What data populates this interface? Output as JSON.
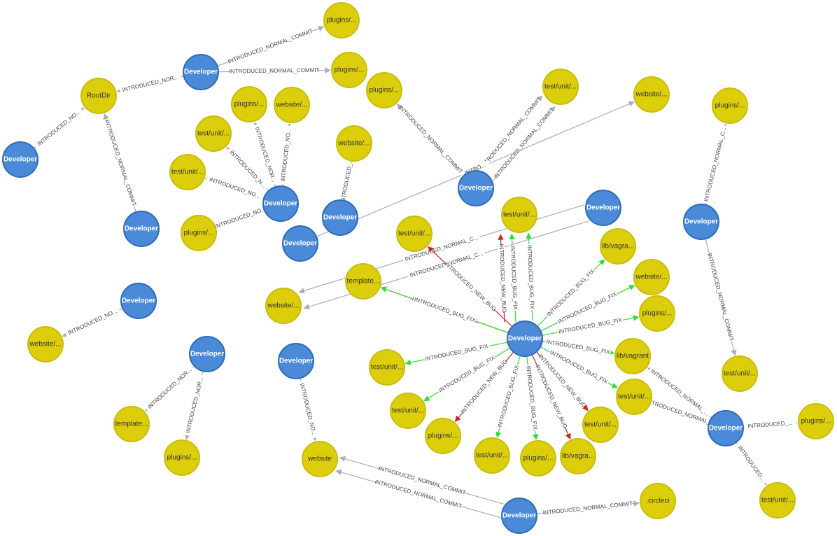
{
  "colors": {
    "developer_fill": "#4a8ad9",
    "developer_stroke": "#2f6cb8",
    "file_fill": "#dcce0a",
    "file_stroke": "#c9bd0b",
    "edge_normal": "#a8adb8",
    "edge_bug_fix": "#33dd33",
    "edge_new_bug": "#cc2222"
  },
  "nodes": [
    {
      "id": "d1",
      "kind": "developer",
      "label": "Developer"
    },
    {
      "id": "f_plugins_top",
      "kind": "file",
      "label": "plugins/..."
    },
    {
      "id": "f_plugins_2",
      "kind": "file",
      "label": "plugins/..."
    },
    {
      "id": "f_rootdir",
      "kind": "file",
      "label": "RootDir"
    },
    {
      "id": "d2",
      "kind": "developer",
      "label": "Developer"
    },
    {
      "id": "d3",
      "kind": "developer",
      "label": "Developer"
    },
    {
      "id": "f_plugins_3",
      "kind": "file",
      "label": "plugins/..."
    },
    {
      "id": "f_testunit_1",
      "kind": "file",
      "label": "test/unit/..."
    },
    {
      "id": "d4",
      "kind": "developer",
      "label": "Developer"
    },
    {
      "id": "f_plugins_4",
      "kind": "file",
      "label": "plugins/..."
    },
    {
      "id": "f_website_1",
      "kind": "file",
      "label": "website/..."
    },
    {
      "id": "f_testunit_2",
      "kind": "file",
      "label": "test/unit/..."
    },
    {
      "id": "f_testunit_3",
      "kind": "file",
      "label": "test/unit/..."
    },
    {
      "id": "f_plugins_5",
      "kind": "file",
      "label": "plugins/..."
    },
    {
      "id": "d5",
      "kind": "developer",
      "label": "Developer"
    },
    {
      "id": "f_website_2",
      "kind": "file",
      "label": "website/..."
    },
    {
      "id": "d6",
      "kind": "developer",
      "label": "Developer"
    },
    {
      "id": "f_website_3",
      "kind": "file",
      "label": "website/..."
    },
    {
      "id": "d7",
      "kind": "developer",
      "label": "Developer"
    },
    {
      "id": "d8",
      "kind": "developer",
      "label": "Developer"
    },
    {
      "id": "f_website_4",
      "kind": "file",
      "label": "website/..."
    },
    {
      "id": "d9",
      "kind": "developer",
      "label": "Developer"
    },
    {
      "id": "f_plugins_6",
      "kind": "file",
      "label": "plugins/..."
    },
    {
      "id": "f_testunit_4",
      "kind": "file",
      "label": "test/unit/..."
    },
    {
      "id": "d10",
      "kind": "developer",
      "label": "Developer"
    },
    {
      "id": "f_website_5",
      "kind": "file",
      "label": "website/..."
    },
    {
      "id": "d11",
      "kind": "developer",
      "label": "Developer"
    },
    {
      "id": "f_template_1",
      "kind": "file",
      "label": "template..."
    },
    {
      "id": "f_plugins_7",
      "kind": "file",
      "label": "plugins/..."
    },
    {
      "id": "d12",
      "kind": "developer",
      "label": "Developer"
    },
    {
      "id": "f_website_6",
      "kind": "file",
      "label": "website"
    },
    {
      "id": "d13",
      "kind": "developer",
      "label": "Developer"
    },
    {
      "id": "f_circleci",
      "kind": "file",
      "label": ".circleci"
    },
    {
      "id": "dC",
      "kind": "developer",
      "label": "Developer"
    },
    {
      "id": "c_testunit_top",
      "kind": "file",
      "label": "test/unit/..."
    },
    {
      "id": "c_testunit_a",
      "kind": "file",
      "label": "test/unit/..."
    },
    {
      "id": "c_template",
      "kind": "file",
      "label": "template..."
    },
    {
      "id": "c_libvagra_1",
      "kind": "file",
      "label": "lib/vagra..."
    },
    {
      "id": "c_website",
      "kind": "file",
      "label": "website/..."
    },
    {
      "id": "c_plugins_r",
      "kind": "file",
      "label": "plugins/..."
    },
    {
      "id": "c_libvagrant",
      "kind": "file",
      "label": "lib/vagrant"
    },
    {
      "id": "c_testunit_r",
      "kind": "file",
      "label": "test/unit/..."
    },
    {
      "id": "c_testunit_br",
      "kind": "file",
      "label": "test/unit/..."
    },
    {
      "id": "c_libvagra_2",
      "kind": "file",
      "label": "lib/vagra..."
    },
    {
      "id": "c_plugins_b",
      "kind": "file",
      "label": "plugins/..."
    },
    {
      "id": "c_testunit_b",
      "kind": "file",
      "label": "test/unit/..."
    },
    {
      "id": "c_plugins_bl",
      "kind": "file",
      "label": "plugins/..."
    },
    {
      "id": "c_testunit_l",
      "kind": "file",
      "label": "test/unit/..."
    },
    {
      "id": "c_testunit_ll",
      "kind": "file",
      "label": "test/unit/..."
    },
    {
      "id": "d14",
      "kind": "developer",
      "label": "Developer"
    },
    {
      "id": "f_plugins_8",
      "kind": "file",
      "label": "plugins/..."
    },
    {
      "id": "f_testunit_5",
      "kind": "file",
      "label": "test/unit/..."
    }
  ],
  "edges": [
    {
      "id": "e1",
      "from": "d1",
      "to": "f_plugins_top",
      "type": "normal",
      "label": "INTRODUCED_NORMAL_COMMIT"
    },
    {
      "id": "e2",
      "from": "d1",
      "to": "f_plugins_2",
      "type": "normal",
      "label": "INTRODUCED_NORMAL_COMMIT"
    },
    {
      "id": "e3",
      "from": "d1",
      "to": "f_rootdir",
      "type": "normal",
      "label": "INTRODUCED_NOR..."
    },
    {
      "id": "e4",
      "from": "d2",
      "to": "f_rootdir",
      "type": "normal",
      "label": "INTRODUCED_NO..."
    },
    {
      "id": "e5",
      "from": "d3",
      "to": "f_rootdir",
      "type": "normal",
      "label": "INTRODUCED_NORMAL_COMMIT"
    },
    {
      "id": "e6",
      "from": "d4",
      "to": "f_plugins_3",
      "type": "normal",
      "label": "INTRODUCED_NORMAL_COMMIT"
    },
    {
      "id": "e7",
      "from": "d4",
      "to": "f_testunit_1",
      "type": "normal",
      "label": "INTRODUCED_NORMAL_COMMIT"
    },
    {
      "id": "e8",
      "from": "d4",
      "to": "f_testunit_1",
      "type": "normal",
      "label": "INTRODUCED_NORMAL_COMMIT"
    },
    {
      "id": "e9",
      "from": "d5",
      "to": "f_plugins_4",
      "type": "normal",
      "label": "INTRODUCED_NOR..."
    },
    {
      "id": "e10",
      "from": "d5",
      "to": "f_website_1",
      "type": "normal",
      "label": "INTRODUCED_NO..."
    },
    {
      "id": "e11",
      "from": "d5",
      "to": "f_testunit_2",
      "type": "normal",
      "label": "INTRODUCED_N..."
    },
    {
      "id": "e12",
      "from": "d5",
      "to": "f_testunit_3",
      "type": "normal",
      "label": "INTRODUCED_NO..."
    },
    {
      "id": "e13",
      "from": "d5",
      "to": "f_plugins_5",
      "type": "normal",
      "label": "INTRODUCED_NO..."
    },
    {
      "id": "e14",
      "from": "d6",
      "to": "f_website_2",
      "type": "normal",
      "label": "INTRODUCED_..."
    },
    {
      "id": "e15",
      "from": "d7",
      "to": "f_website_3",
      "type": "normal",
      "label": "INTRO..."
    },
    {
      "id": "e16",
      "from": "d8",
      "to": "f_website_4",
      "type": "normal",
      "label": "INTRODUCED_NORMAL_C..."
    },
    {
      "id": "e17",
      "from": "d8",
      "to": "f_website_4",
      "type": "normal",
      "label": "INTRODUCED_NORMAL_C..."
    },
    {
      "id": "e18",
      "from": "d9",
      "to": "f_plugins_6",
      "type": "normal",
      "label": "INTRODUCED_NORMAL_C..."
    },
    {
      "id": "e19",
      "from": "d9",
      "to": "f_testunit_4",
      "type": "normal",
      "label": "INTRODUCED_NORMAL_COMMIT"
    },
    {
      "id": "e20",
      "from": "d10",
      "to": "f_website_5",
      "type": "normal",
      "label": "INTRODUCED_NO..."
    },
    {
      "id": "e21",
      "from": "d11",
      "to": "f_template_1",
      "type": "normal",
      "label": "INTRODUCED_NOR..."
    },
    {
      "id": "e22",
      "from": "d11",
      "to": "f_plugins_7",
      "type": "normal",
      "label": "INTRODUCED_NOR..."
    },
    {
      "id": "e23",
      "from": "d12",
      "to": "f_website_6",
      "type": "normal",
      "label": "INTRODUCED_NO..."
    },
    {
      "id": "e24",
      "from": "d13",
      "to": "f_website_6",
      "type": "normal",
      "label": "INTRODUCED_NORMAL_COMMIT"
    },
    {
      "id": "e25",
      "from": "d13",
      "to": "f_website_6",
      "type": "normal",
      "label": "INTRODUCED_NORMAL_COMMIT"
    },
    {
      "id": "e26",
      "from": "d13",
      "to": "f_circleci",
      "type": "normal",
      "label": "INTRODUCED_NORMAL_COMMIT"
    },
    {
      "id": "e27",
      "from": "dC",
      "to": "c_testunit_top",
      "type": "new_bug",
      "label": "INTRODUCED_NEW_BUG"
    },
    {
      "id": "e28",
      "from": "dC",
      "to": "c_testunit_top",
      "type": "bug_fix",
      "label": "INTRODUCED_BUG_FIX"
    },
    {
      "id": "e29",
      "from": "dC",
      "to": "c_testunit_top",
      "type": "bug_fix",
      "label": "INTRODUCED_BUG_FIX"
    },
    {
      "id": "e30",
      "from": "dC",
      "to": "c_testunit_a",
      "type": "new_bug",
      "label": "INTRODUCED_NEW_BUG"
    },
    {
      "id": "e31",
      "from": "dC",
      "to": "c_template",
      "type": "new_bug",
      "label": "INTRODUCED_NEW_BUG"
    },
    {
      "id": "e32",
      "from": "dC",
      "to": "c_template",
      "type": "bug_fix",
      "label": "INTRODUCED_BUG_FIX"
    },
    {
      "id": "e33",
      "from": "dC",
      "to": "c_libvagra_1",
      "type": "bug_fix",
      "label": "INTRODUCED_BUG_FIX"
    },
    {
      "id": "e34",
      "from": "dC",
      "to": "c_website",
      "type": "bug_fix",
      "label": "INTRODUCED_BUG_FIX"
    },
    {
      "id": "e35",
      "from": "dC",
      "to": "c_plugins_r",
      "type": "bug_fix",
      "label": "INTRODUCED_BUG_FIX"
    },
    {
      "id": "e36",
      "from": "dC",
      "to": "c_libvagrant",
      "type": "bug_fix",
      "label": "INTRODUCED_BUG_FIX"
    },
    {
      "id": "e37",
      "from": "dC",
      "to": "c_testunit_r",
      "type": "bug_fix",
      "label": "INTRODUCED_BUG_FIX"
    },
    {
      "id": "e38",
      "from": "dC",
      "to": "c_testunit_br",
      "type": "new_bug",
      "label": "INTRODUCED_NEW_BUG"
    },
    {
      "id": "e39",
      "from": "dC",
      "to": "c_libvagra_2",
      "type": "new_bug",
      "label": "INTRODUCED_NEW_BUG"
    },
    {
      "id": "e40",
      "from": "dC",
      "to": "c_plugins_b",
      "type": "bug_fix",
      "label": "INTRODUCED_BUG_FIX"
    },
    {
      "id": "e41",
      "from": "dC",
      "to": "c_testunit_b",
      "type": "bug_fix",
      "label": "INTRODUCED_BUG_FIX"
    },
    {
      "id": "e42",
      "from": "dC",
      "to": "c_plugins_bl",
      "type": "new_bug",
      "label": "INTRODUCED_NEW_BUG"
    },
    {
      "id": "e43",
      "from": "dC",
      "to": "c_testunit_l",
      "type": "bug_fix",
      "label": "INTRODUCED_BUG_FIX"
    },
    {
      "id": "e44",
      "from": "dC",
      "to": "c_testunit_ll",
      "type": "bug_fix",
      "label": "INTRODUCED_BUG_FIX"
    },
    {
      "id": "e45",
      "from": "d14",
      "to": "c_libvagrant",
      "type": "normal",
      "label": "INTRODUCED_NORMAL_..."
    },
    {
      "id": "e46",
      "from": "d14",
      "to": "c_testunit_r",
      "type": "normal",
      "label": "INTRODUCED_NORMAL_..."
    },
    {
      "id": "e47",
      "from": "d14",
      "to": "f_plugins_8",
      "type": "normal",
      "label": "INTRODUCED_..."
    },
    {
      "id": "e48",
      "from": "d14",
      "to": "f_testunit_5",
      "type": "normal",
      "label": "INTRODUCED..."
    }
  ]
}
